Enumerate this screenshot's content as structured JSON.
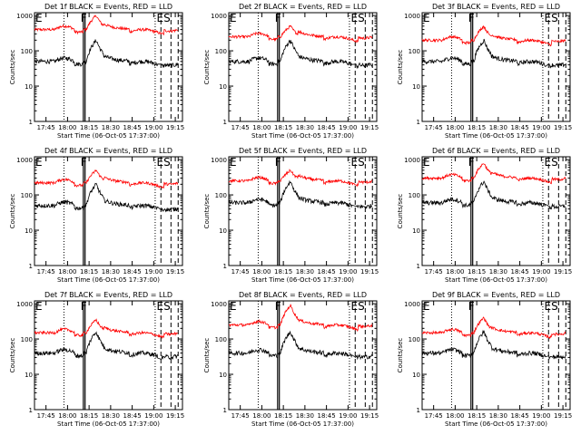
{
  "figure": {
    "panels": [
      {
        "title": "Det 1f BLACK = Events, RED = LLD",
        "marker_left": "E",
        "marker_mid": "F",
        "marker_right": "ES",
        "red_base": 400,
        "black_base": 50,
        "red_peak": 1000
      },
      {
        "title": "Det 2f BLACK = Events, RED = LLD",
        "marker_left": "E",
        "marker_mid": "F",
        "marker_right": "ES",
        "red_base": 250,
        "black_base": 50,
        "red_peak": 500
      },
      {
        "title": "Det 3f BLACK = Events, RED = LLD",
        "marker_left": "E",
        "marker_mid": "F",
        "marker_right": "ES",
        "red_base": 200,
        "black_base": 50,
        "red_peak": 500
      },
      {
        "title": "Det 4f BLACK = Events, RED = LLD",
        "marker_left": "E",
        "marker_mid": "F",
        "marker_right": "ES",
        "red_base": 220,
        "black_base": 50,
        "red_peak": 500
      },
      {
        "title": "Det 5f BLACK = Events, RED = LLD",
        "marker_left": "E",
        "marker_mid": "F",
        "marker_right": "ES",
        "red_base": 250,
        "black_base": 60,
        "red_peak": 500
      },
      {
        "title": "Det 6f BLACK = Events, RED = LLD",
        "marker_left": "E",
        "marker_mid": "F",
        "marker_right": "ES",
        "red_base": 300,
        "black_base": 60,
        "red_peak": 800
      },
      {
        "title": "Det 7f BLACK = Events, RED = LLD",
        "marker_left": "E",
        "marker_mid": "F",
        "marker_right": "ES",
        "red_base": 150,
        "black_base": 40,
        "red_peak": 350
      },
      {
        "title": "Det 8f BLACK = Events, RED = LLD",
        "marker_left": "E",
        "marker_mid": "F",
        "marker_right": "ES",
        "red_base": 250,
        "black_base": 40,
        "red_peak": 900
      },
      {
        "title": "Det 9f BLACK = Events, RED = LLD",
        "marker_left": "E",
        "marker_mid": "F",
        "marker_right": "ES",
        "red_base": 150,
        "black_base": 40,
        "red_peak": 400
      }
    ]
  },
  "chart_data": {
    "type": "line",
    "xlabel": "Start Time (06-Oct-05 17:37:00)",
    "ylabel": "Counts/sec",
    "x_tick_labels": [
      "17:45",
      "18:00",
      "18:15",
      "18:30",
      "18:45",
      "19:00",
      "19:15"
    ],
    "y_tick_labels": [
      "1",
      "10",
      "100",
      "1000"
    ],
    "xlim_minutes_after_start": [
      0,
      103
    ],
    "ylim": [
      1,
      1200
    ],
    "y_scale": "log",
    "series": [
      {
        "name": "BLACK = Events",
        "color": "#000000"
      },
      {
        "name": "RED = LLD",
        "color": "#ff0000"
      }
    ]
  },
  "colors": {
    "events": "#000000",
    "lld": "#ff0000"
  }
}
